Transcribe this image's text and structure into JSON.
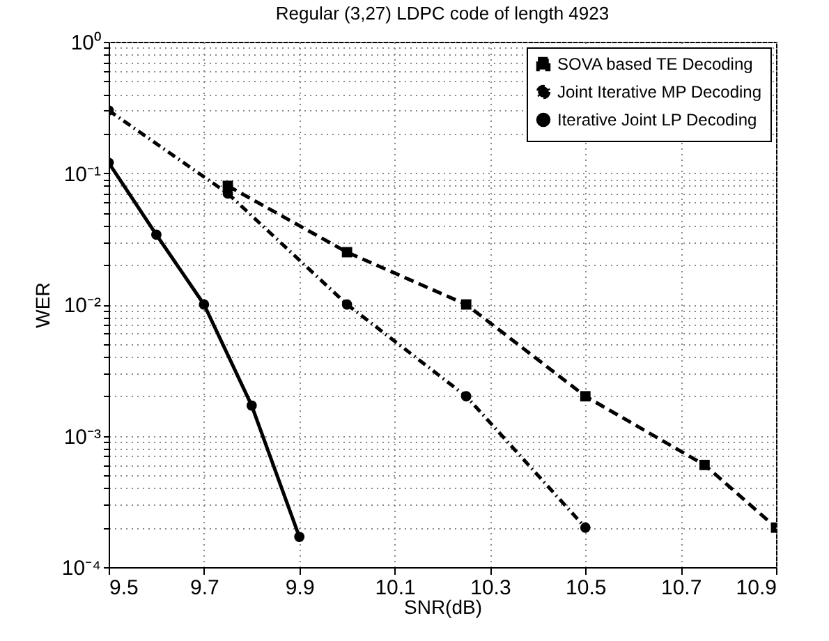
{
  "chart_data": {
    "type": "line",
    "title": "Regular (3,27) LDPC code of length 4923",
    "xlabel": "SNR(dB)",
    "ylabel": "WER",
    "log": "y",
    "grid": true,
    "legend": "top right",
    "xlim": [
      9.5,
      10.9
    ],
    "xticks": [
      9.5,
      9.7,
      9.9,
      10.1,
      10.3,
      10.5,
      10.7,
      10.9
    ],
    "ylim": [
      0.0001,
      1
    ],
    "yticks": [
      {
        "value": 0.0001,
        "label": "10⁻⁴"
      },
      {
        "value": 0.001,
        "label": "10⁻³"
      },
      {
        "value": 0.01,
        "label": "10⁻²"
      },
      {
        "value": 0.1,
        "label": "10⁻¹"
      },
      {
        "value": 1,
        "label": "10⁰"
      }
    ],
    "series": [
      {
        "name": "SOVA based TE Decoding",
        "color": "#000000",
        "marker": "square",
        "line_style": "dashed",
        "x": [
          9.75,
          10.0,
          10.25,
          10.5,
          10.75,
          10.9
        ],
        "values": [
          0.08,
          0.025,
          0.01,
          0.002,
          0.0006,
          0.0002
        ]
      },
      {
        "name": "Joint Iterative MP Decoding",
        "color": "#000000",
        "marker": "circle",
        "line_style": "dotted",
        "x": [
          9.5,
          9.75,
          10.0,
          10.25,
          10.5
        ],
        "values": [
          0.3,
          0.07,
          0.01,
          0.002,
          0.0002
        ]
      },
      {
        "name": "Iterative Joint LP Decoding",
        "color": "#000000",
        "marker": "circle",
        "line_style": "solid",
        "x": [
          9.5,
          9.6,
          9.7,
          9.8,
          9.9
        ],
        "values": [
          0.12,
          0.034,
          0.01,
          0.0017,
          0.00017
        ]
      }
    ]
  }
}
